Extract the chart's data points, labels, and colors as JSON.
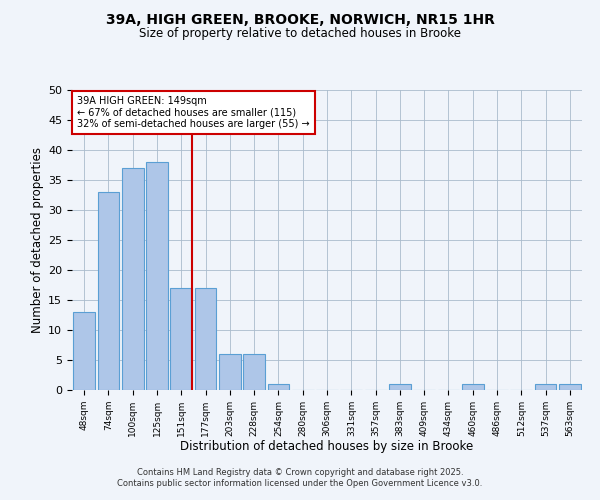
{
  "title_line1": "39A, HIGH GREEN, BROOKE, NORWICH, NR15 1HR",
  "title_line2": "Size of property relative to detached houses in Brooke",
  "xlabel": "Distribution of detached houses by size in Brooke",
  "ylabel": "Number of detached properties",
  "categories": [
    "48sqm",
    "74sqm",
    "100sqm",
    "125sqm",
    "151sqm",
    "177sqm",
    "203sqm",
    "228sqm",
    "254sqm",
    "280sqm",
    "306sqm",
    "331sqm",
    "357sqm",
    "383sqm",
    "409sqm",
    "434sqm",
    "460sqm",
    "486sqm",
    "512sqm",
    "537sqm",
    "563sqm"
  ],
  "values": [
    13,
    33,
    37,
    38,
    17,
    17,
    6,
    6,
    1,
    0,
    0,
    0,
    0,
    1,
    0,
    0,
    1,
    0,
    0,
    1,
    1
  ],
  "bar_color": "#aec6e8",
  "bar_edge_color": "#5a9fd4",
  "red_line_index": 4,
  "ylim": [
    0,
    50
  ],
  "yticks": [
    0,
    5,
    10,
    15,
    20,
    25,
    30,
    35,
    40,
    45,
    50
  ],
  "annotation_text": "39A HIGH GREEN: 149sqm\n← 67% of detached houses are smaller (115)\n32% of semi-detached houses are larger (55) →",
  "annotation_box_color": "#ffffff",
  "annotation_box_edge": "#cc0000",
  "footer_line1": "Contains HM Land Registry data © Crown copyright and database right 2025.",
  "footer_line2": "Contains public sector information licensed under the Open Government Licence v3.0.",
  "background_color": "#f0f4fa",
  "grid_color": "#aabbcc"
}
